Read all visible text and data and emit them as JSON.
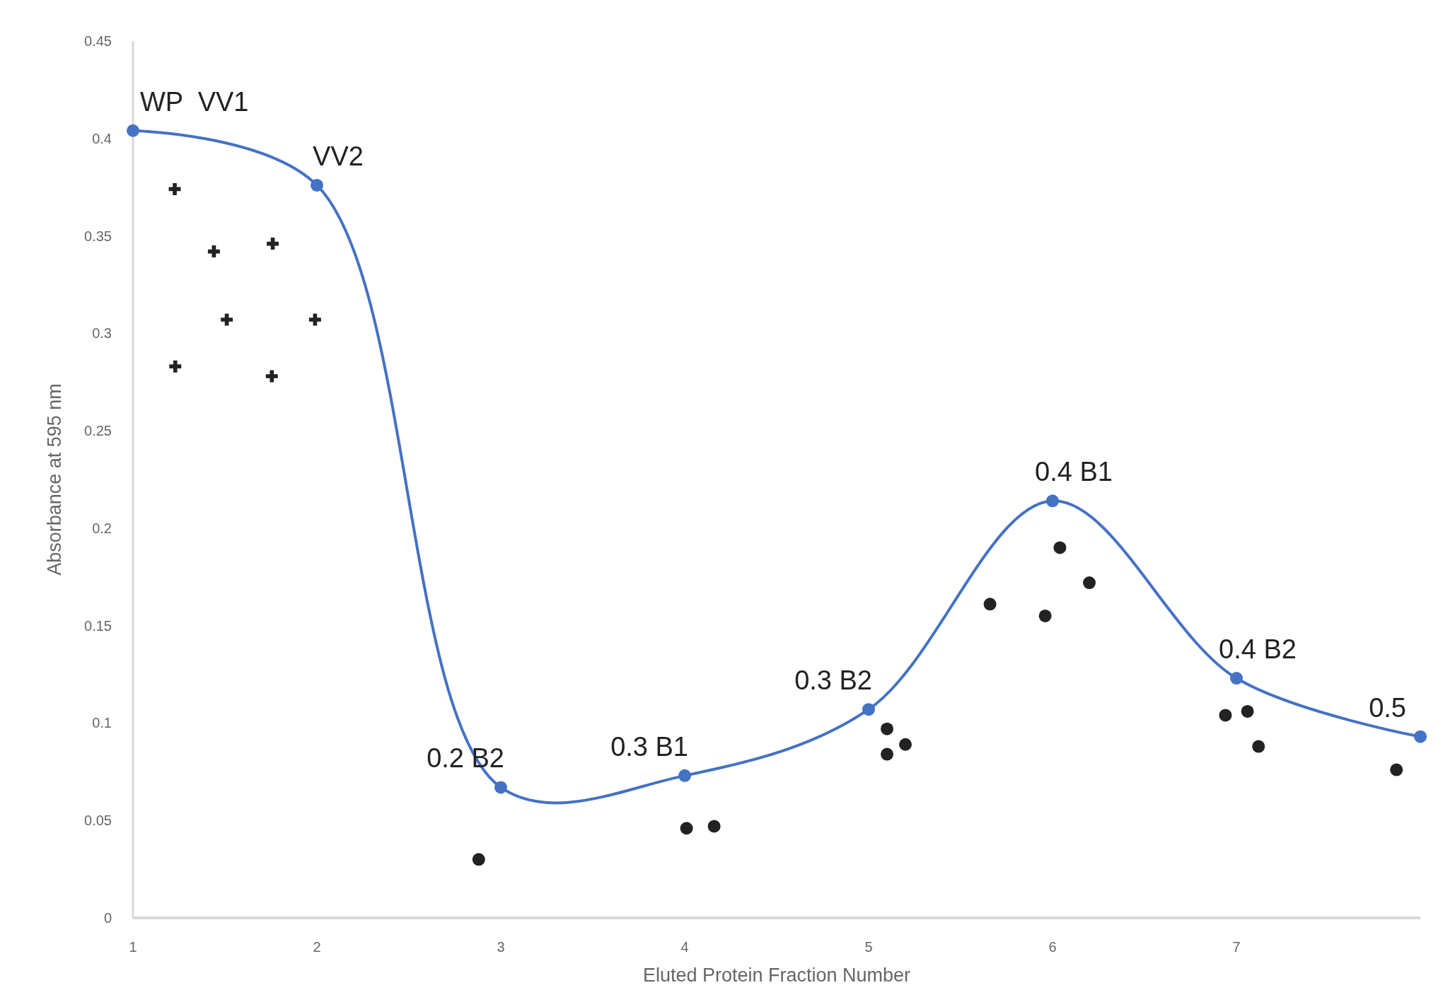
{
  "chart_data": {
    "type": "line",
    "xlabel": "Eluted Protein Fraction Number",
    "ylabel": "Absorbance at 595 nm",
    "x": [
      1,
      2,
      3,
      4,
      5,
      6,
      7,
      8
    ],
    "series": [
      {
        "color": "#4472c4",
        "values": [
          0.404,
          0.376,
          0.067,
          0.073,
          0.107,
          0.214,
          0.123,
          0.093
        ]
      },
      {
        "type": "scatter",
        "marker": "cross",
        "color": "#222222",
        "x": [
          1.227,
          1.44,
          1.76,
          1.51,
          1.99,
          1.23,
          1.755
        ],
        "values": [
          0.374,
          0.342,
          0.346,
          0.307,
          0.307,
          0.283,
          0.278
        ]
      },
      {
        "type": "scatter",
        "color": "#222222",
        "x": [
          2.88,
          4.01,
          4.16,
          5.1,
          5.1,
          5.2,
          5.66,
          5.96,
          6.04,
          6.2,
          6.94,
          7.06,
          7.12,
          7.87
        ],
        "values": [
          0.03,
          0.046,
          0.047,
          0.097,
          0.084,
          0.089,
          0.161,
          0.155,
          0.19,
          0.172,
          0.104,
          0.106,
          0.088,
          0.076
        ]
      }
    ],
    "xlim": [
      1,
      8
    ],
    "xticks": [
      1,
      2,
      3,
      4,
      5,
      6,
      7
    ],
    "ylim": [
      0,
      0.45
    ],
    "yticks": [
      0,
      0.05,
      0.1,
      0.15,
      0.2,
      0.25,
      0.3,
      0.35,
      0.4,
      0.45
    ],
    "grid": false,
    "marker": "circle",
    "line_style": "solid",
    "annotations": [
      {
        "text": "WP  VV1",
        "x": 1,
        "y": 0.404
      },
      {
        "text": "VV2",
        "x": 2,
        "y": 0.376
      },
      {
        "text": "0.2 B2",
        "x": 3,
        "y": 0.067
      },
      {
        "text": "0.3 B1",
        "x": 4,
        "y": 0.073
      },
      {
        "text": "0.3 B2",
        "x": 5,
        "y": 0.107
      },
      {
        "text": "0.4 B1",
        "x": 6,
        "y": 0.214
      },
      {
        "text": "0.4 B2",
        "x": 7,
        "y": 0.123
      },
      {
        "text": "0.5",
        "x": 8,
        "y": 0.093
      }
    ]
  }
}
